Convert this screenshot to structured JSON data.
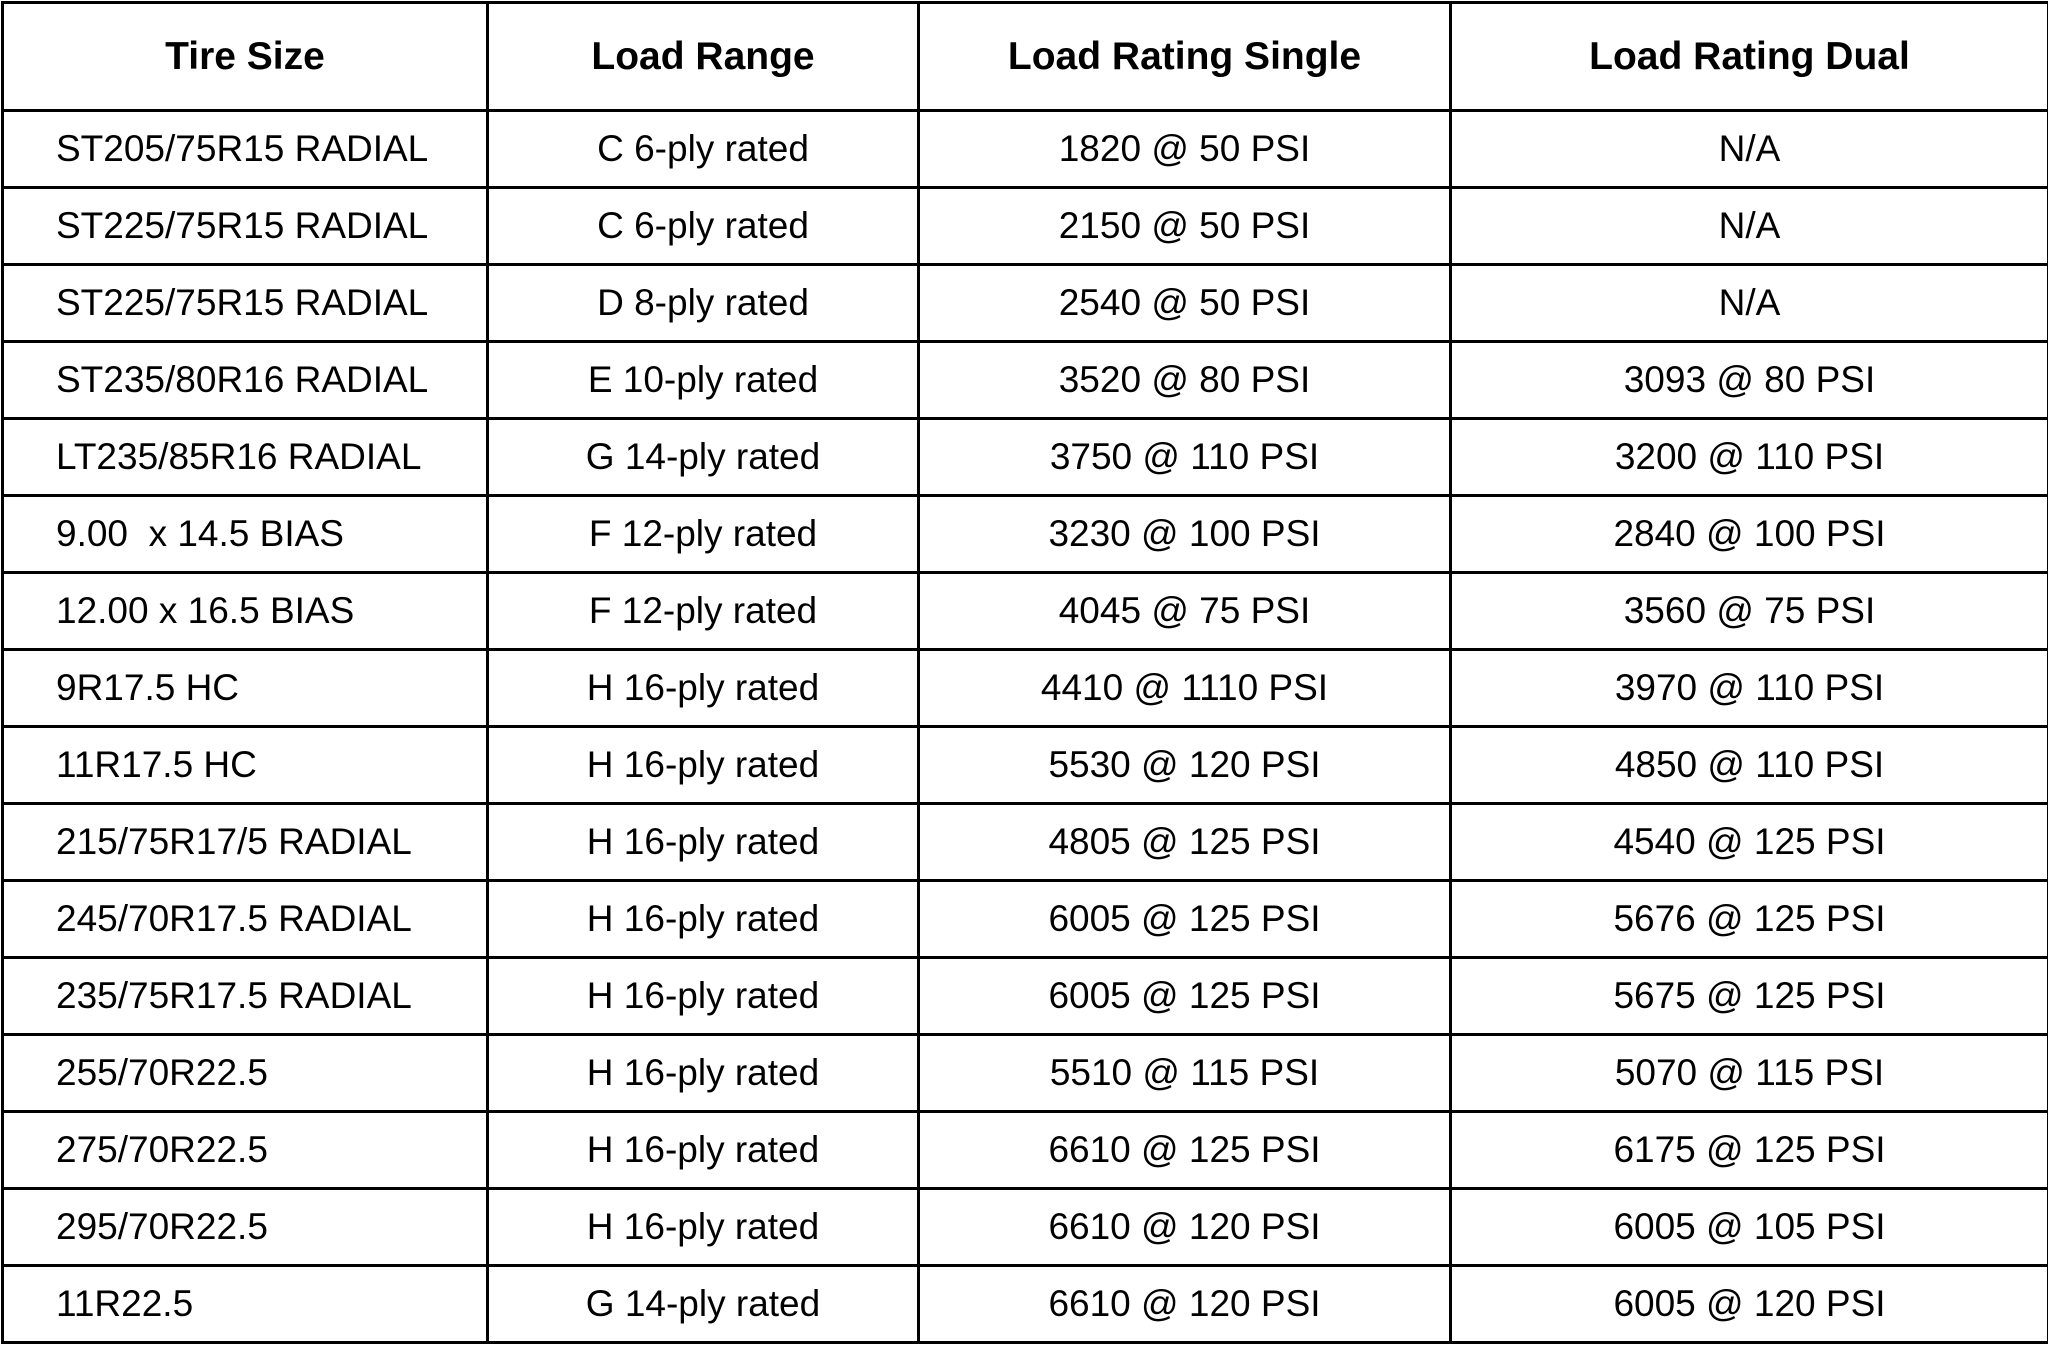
{
  "table": {
    "headers": [
      "Tire Size",
      "Load Range",
      "Load Rating Single",
      "Load Rating Dual"
    ],
    "rows": [
      [
        "ST205/75R15 RADIAL",
        "C 6-ply rated",
        "1820 @ 50 PSI",
        "N/A"
      ],
      [
        "ST225/75R15 RADIAL",
        "C 6-ply rated",
        "2150 @ 50 PSI",
        "N/A"
      ],
      [
        "ST225/75R15 RADIAL",
        "D 8-ply rated",
        "2540 @ 50 PSI",
        "N/A"
      ],
      [
        "ST235/80R16 RADIAL",
        "E 10-ply rated",
        "3520 @ 80 PSI",
        "3093 @ 80 PSI"
      ],
      [
        "LT235/85R16 RADIAL",
        "G 14-ply rated",
        "3750 @ 110 PSI",
        "3200 @ 110 PSI"
      ],
      [
        "9.00  x 14.5 BIAS",
        "F 12-ply rated",
        "3230 @ 100 PSI",
        "2840 @ 100 PSI"
      ],
      [
        "12.00 x 16.5 BIAS",
        "F 12-ply rated",
        "4045 @ 75 PSI",
        "3560 @ 75 PSI"
      ],
      [
        "9R17.5 HC",
        "H 16-ply rated",
        "4410 @ 1110 PSI",
        "3970 @ 110 PSI"
      ],
      [
        "11R17.5 HC",
        "H 16-ply rated",
        "5530 @ 120 PSI",
        "4850 @ 110 PSI"
      ],
      [
        "215/75R17/5 RADIAL",
        "H 16-ply rated",
        "4805 @ 125 PSI",
        "4540 @ 125 PSI"
      ],
      [
        "245/70R17.5 RADIAL",
        "H 16-ply rated",
        "6005 @ 125 PSI",
        "5676 @ 125 PSI"
      ],
      [
        "235/75R17.5 RADIAL",
        "H 16-ply rated",
        "6005 @ 125 PSI",
        "5675 @ 125 PSI"
      ],
      [
        "255/70R22.5",
        "H 16-ply rated",
        "5510 @ 115 PSI",
        "5070 @ 115 PSI"
      ],
      [
        "275/70R22.5",
        "H 16-ply rated",
        "6610 @ 125 PSI",
        "6175 @ 125 PSI"
      ],
      [
        "295/70R22.5",
        "H 16-ply rated",
        "6610 @ 120 PSI",
        "6005 @ 105 PSI"
      ],
      [
        "11R22.5",
        "G 14-ply rated",
        "6610 @ 120 PSI",
        "6005 @ 120 PSI"
      ]
    ]
  }
}
